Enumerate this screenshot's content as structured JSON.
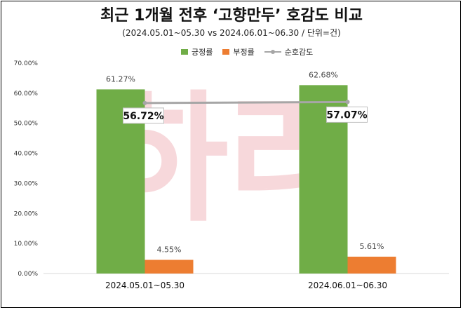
{
  "chart_data": {
    "type": "bar",
    "title": "최근 1개월 전후 ‘고향만두’ 호감도 비교",
    "subtitle": "(2024.05.01~05.30 vs 2024.06.01~06.30 / 단위=건)",
    "categories": [
      "2024.05.01~05.30",
      "2024.06.01~06.30"
    ],
    "series": [
      {
        "name": "긍정률",
        "kind": "bar",
        "color": "#70ad47",
        "values": [
          61.27,
          62.68
        ],
        "labels": [
          "61.27%",
          "62.68%"
        ]
      },
      {
        "name": "부정률",
        "kind": "bar",
        "color": "#ed7d31",
        "values": [
          4.55,
          5.61
        ],
        "labels": [
          "4.55%",
          "5.61%"
        ]
      },
      {
        "name": "순호감도",
        "kind": "line",
        "color": "#a6a6a6",
        "values": [
          56.72,
          57.07
        ],
        "labels": [
          "56.72%",
          "57.07%"
        ]
      }
    ],
    "ylim": [
      0,
      70
    ],
    "yticks": [
      "0.00%",
      "10.00%",
      "20.00%",
      "30.00%",
      "40.00%",
      "50.00%",
      "60.00%",
      "70.00%"
    ],
    "legend_position": "top-right",
    "grid": false
  },
  "watermark_text": "하러",
  "watermark_color": "#f4c8cc"
}
